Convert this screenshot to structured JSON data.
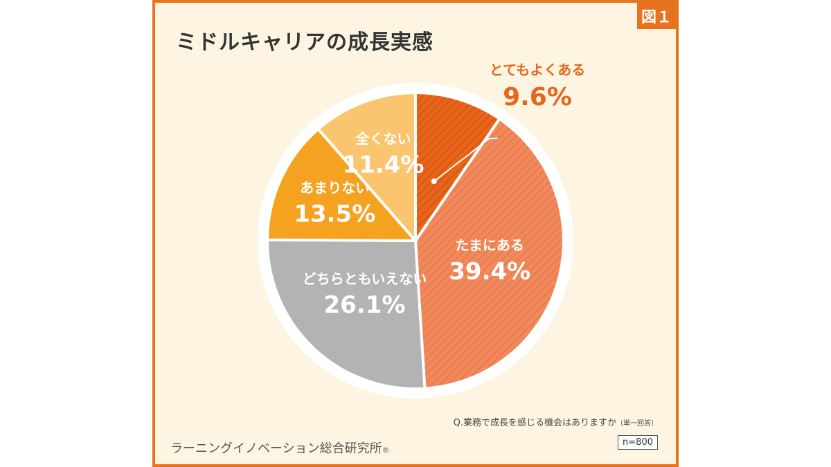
{
  "figure_label": "図１",
  "title": "ミドルキャリアの成長実感",
  "question": "Q.業務で成長を感じる機会はありますか",
  "question_note": "（単一回答）",
  "sample": "n=800",
  "organization": "ラーニングイノベーション総合研究所",
  "organization_mark": "®",
  "chart_data": {
    "type": "pie",
    "title": "ミドルキャリアの成長実感",
    "unit": "%",
    "slices": [
      {
        "label": "とてもよくある",
        "value": 9.6,
        "color": "#e8661b",
        "hatched": true
      },
      {
        "label": "たまにある",
        "value": 39.4,
        "color": "#f08a5d",
        "hatched": true
      },
      {
        "label": "どちらともいえない",
        "value": 26.1,
        "color": "#b3b3b3",
        "hatched": false
      },
      {
        "label": "あまりない",
        "value": 13.5,
        "color": "#f4a21f",
        "hatched": false
      },
      {
        "label": "全くない",
        "value": 11.4,
        "color": "#fac56e",
        "hatched": false
      }
    ],
    "start_angle_deg": 0,
    "direction": "clockwise",
    "callout_slice": 0,
    "callout_color": "#e8661b"
  }
}
